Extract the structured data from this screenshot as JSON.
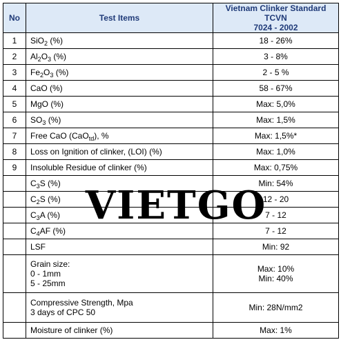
{
  "table": {
    "headers": {
      "no": "No",
      "item": "Test Items",
      "value_line1": "Vietnam Clinker Standard TCVN",
      "value_line2": "7024 - 2002"
    },
    "rows": [
      {
        "no": "1",
        "item_pre": "SiO",
        "item_sub": "2",
        "item_post": " (%)",
        "value": "18 - 26%"
      },
      {
        "no": "2",
        "item_pre": "Al",
        "item_sub": "2",
        "item_mid": "O",
        "item_sub2": "3",
        "item_post": " (%)",
        "value": "3 - 8%"
      },
      {
        "no": "3",
        "item_pre": "Fe",
        "item_sub": "2",
        "item_mid": "O",
        "item_sub2": "3",
        "item_post": " (%)",
        "value": "2 - 5 %"
      },
      {
        "no": "4",
        "item_pre": "CaO (%)",
        "value": "58 -  67%"
      },
      {
        "no": "5",
        "item_pre": "MgO (%)",
        "value": "Max: 5,0%"
      },
      {
        "no": "6",
        "item_pre": "SO",
        "item_sub": "3",
        "item_post": " (%)",
        "value": "Max: 1,5%"
      },
      {
        "no": "7",
        "item_pre": "Free CaO (CaO",
        "item_sub": "td",
        "item_post": "), %",
        "value": "Max: 1,5%*"
      },
      {
        "no": "8",
        "item_pre": "Loss on Ignition of clinker, (LOI)  (%)",
        "value": "Max: 1,0%"
      },
      {
        "no": "9",
        "item_pre": "Insoluble Residue  of clinker (%)",
        "value": "Max: 0,75%"
      },
      {
        "no": "",
        "item_pre": "C",
        "item_sub": "3",
        "item_post": "S (%)",
        "value": "Min: 54%"
      },
      {
        "no": "",
        "item_pre": "C",
        "item_sub": "2",
        "item_post": "S (%)",
        "value": "12 - 20"
      },
      {
        "no": "",
        "item_pre": "C",
        "item_sub": "3",
        "item_post": "A (%)",
        "value": "7 - 12"
      },
      {
        "no": "",
        "item_pre": "C",
        "item_sub": "4",
        "item_post": "AF (%)",
        "value": "7 - 12"
      },
      {
        "no": "",
        "item_pre": "LSF",
        "value": "Min: 92"
      }
    ],
    "grain": {
      "item_lines": [
        "Grain size:",
        "0 - 1mm",
        "5 - 25mm"
      ],
      "value_lines": [
        "Max: 10%",
        "Min: 40%"
      ]
    },
    "strength": {
      "item_lines": [
        "Compressive Strength, Mpa",
        "3 days of CPC 50"
      ],
      "value": "Min: 28N/mm2"
    },
    "moisture": {
      "item": "Moisture of clinker (%)",
      "value": "Max: 1%"
    }
  },
  "watermark": "VIETGO"
}
